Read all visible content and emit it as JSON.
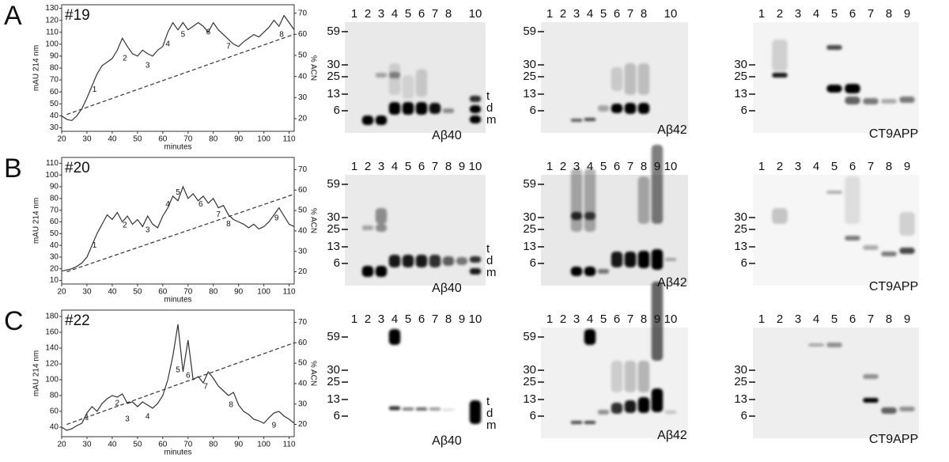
{
  "panels": [
    {
      "letter": "A",
      "sample": "#19",
      "chromatogram": {
        "type": "line",
        "xlabel": "minutes",
        "ylabel": "mAU 214 nm",
        "y2label": "% ACN",
        "xlim": [
          20,
          112
        ],
        "xticks": [
          20,
          30,
          40,
          50,
          60,
          70,
          80,
          90,
          100,
          110
        ],
        "ylim": [
          27,
          133
        ],
        "yticks": [
          30,
          40,
          50,
          60,
          70,
          80,
          90,
          100,
          110,
          120,
          130
        ],
        "y2lim": [
          14,
          74
        ],
        "y2ticks": [
          20,
          30,
          40,
          50,
          60,
          70
        ],
        "color": "#333333",
        "x": [
          20,
          22,
          24,
          26,
          28,
          30,
          32,
          34,
          36,
          38,
          40,
          42,
          44,
          46,
          48,
          50,
          52,
          54,
          56,
          58,
          60,
          62,
          64,
          66,
          68,
          70,
          72,
          74,
          76,
          78,
          80,
          82,
          84,
          86,
          88,
          90,
          92,
          94,
          96,
          98,
          100,
          102,
          104,
          106,
          108,
          110,
          112
        ],
        "values": [
          40,
          37,
          36,
          40,
          46,
          55,
          65,
          75,
          82,
          85,
          88,
          95,
          105,
          98,
          92,
          90,
          95,
          92,
          90,
          95,
          98,
          110,
          118,
          112,
          118,
          112,
          115,
          118,
          115,
          110,
          118,
          112,
          108,
          104,
          100,
          98,
          102,
          105,
          108,
          106,
          110,
          114,
          120,
          115,
          124,
          118,
          112
        ],
        "gradient": {
          "axis": "y2",
          "x": [
            22,
            112
          ],
          "values": [
            22,
            60
          ]
        },
        "fractions": [
          {
            "label": "1",
            "x": 33,
            "y": 62
          },
          {
            "label": "2",
            "x": 45,
            "y": 88
          },
          {
            "label": "3",
            "x": 54,
            "y": 82
          },
          {
            "label": "4",
            "x": 62,
            "y": 100
          },
          {
            "label": "5",
            "x": 68,
            "y": 108
          },
          {
            "label": "6",
            "x": 78,
            "y": 110
          },
          {
            "label": "7",
            "x": 86,
            "y": 98
          },
          {
            "label": "8",
            "x": 107,
            "y": 108
          }
        ]
      },
      "blots": [
        {
          "lanes": [
            1,
            2,
            3,
            4,
            5,
            6,
            7,
            8,
            10
          ],
          "markers": [
            59,
            30,
            25,
            13,
            6
          ],
          "caption": "Aβ40",
          "band_labels": [
            "t",
            "d",
            "m"
          ]
        },
        {
          "lanes": [
            1,
            2,
            3,
            4,
            5,
            6,
            7,
            8,
            10
          ],
          "markers": [
            59,
            30,
            25,
            13,
            6
          ],
          "caption": "Aβ42"
        },
        {
          "lanes": [
            1,
            2,
            3,
            4,
            5,
            6,
            7,
            8,
            9
          ],
          "markers": [
            30,
            25,
            13,
            6
          ],
          "caption": "CT9APP"
        }
      ]
    },
    {
      "letter": "B",
      "sample": "#20",
      "chromatogram": {
        "type": "line",
        "xlabel": "minutes",
        "ylabel": "mAU 214 nm",
        "y2label": "% ACN",
        "xlim": [
          20,
          112
        ],
        "xticks": [
          20,
          30,
          40,
          50,
          60,
          70,
          80,
          90,
          100,
          110
        ],
        "ylim": [
          7,
          115
        ],
        "yticks": [
          10,
          20,
          30,
          40,
          50,
          60,
          70,
          80,
          90,
          100,
          110
        ],
        "y2lim": [
          14,
          76
        ],
        "y2ticks": [
          20,
          30,
          40,
          50,
          60,
          70
        ],
        "color": "#333333",
        "x": [
          20,
          24,
          26,
          28,
          30,
          32,
          34,
          36,
          38,
          40,
          42,
          44,
          46,
          48,
          50,
          52,
          54,
          56,
          58,
          60,
          62,
          64,
          66,
          68,
          70,
          72,
          74,
          76,
          78,
          80,
          82,
          84,
          86,
          88,
          90,
          92,
          94,
          96,
          98,
          100,
          102,
          104,
          106,
          108,
          110,
          112
        ],
        "values": [
          18,
          20,
          22,
          25,
          30,
          40,
          50,
          58,
          66,
          62,
          68,
          60,
          65,
          58,
          62,
          56,
          65,
          58,
          55,
          65,
          72,
          82,
          78,
          90,
          80,
          84,
          78,
          82,
          76,
          80,
          72,
          74,
          66,
          62,
          60,
          58,
          55,
          58,
          54,
          56,
          60,
          66,
          72,
          65,
          58,
          56
        ],
        "gradient": {
          "axis": "y2",
          "x": [
            22,
            112
          ],
          "values": [
            20,
            58
          ]
        },
        "fractions": [
          {
            "label": "1",
            "x": 33,
            "y": 40
          },
          {
            "label": "2",
            "x": 45,
            "y": 57
          },
          {
            "label": "3",
            "x": 54,
            "y": 53
          },
          {
            "label": "4",
            "x": 62,
            "y": 75
          },
          {
            "label": "5",
            "x": 66,
            "y": 85
          },
          {
            "label": "6",
            "x": 75,
            "y": 75
          },
          {
            "label": "7",
            "x": 82,
            "y": 66
          },
          {
            "label": "8",
            "x": 86,
            "y": 58
          },
          {
            "label": "9",
            "x": 105,
            "y": 63
          }
        ]
      },
      "blots": [
        {
          "lanes": [
            1,
            2,
            3,
            4,
            5,
            6,
            7,
            8,
            9,
            10
          ],
          "markers": [
            59,
            30,
            25,
            13,
            6
          ],
          "caption": "Aβ40",
          "band_labels": [
            "t",
            "d",
            "m"
          ]
        },
        {
          "lanes": [
            1,
            2,
            3,
            4,
            5,
            6,
            7,
            8,
            9,
            10
          ],
          "markers": [
            59,
            30,
            25,
            13,
            6
          ],
          "caption": "Aβ42"
        },
        {
          "lanes": [
            1,
            2,
            3,
            4,
            5,
            6,
            7,
            8,
            9
          ],
          "markers": [
            30,
            25,
            13,
            6
          ],
          "caption": "CT9APP"
        }
      ]
    },
    {
      "letter": "C",
      "sample": "#22",
      "chromatogram": {
        "type": "line",
        "xlabel": "minutes",
        "ylabel": "mAU 214 nm",
        "y2label": "% ACN",
        "xlim": [
          20,
          112
        ],
        "xticks": [
          20,
          30,
          40,
          50,
          60,
          70,
          80,
          90,
          100,
          110
        ],
        "ylim": [
          28,
          188
        ],
        "yticks": [
          40,
          60,
          80,
          100,
          120,
          140,
          160,
          180
        ],
        "y2lim": [
          14,
          76
        ],
        "y2ticks": [
          20,
          30,
          40,
          50,
          60,
          70
        ],
        "color": "#333333",
        "x": [
          20,
          22,
          24,
          26,
          28,
          30,
          32,
          34,
          36,
          38,
          40,
          42,
          44,
          46,
          48,
          50,
          52,
          54,
          56,
          58,
          60,
          62,
          64,
          66,
          68,
          70,
          72,
          74,
          76,
          78,
          80,
          82,
          84,
          86,
          88,
          90,
          92,
          94,
          96,
          98,
          100,
          102,
          104,
          106,
          108,
          110,
          112
        ],
        "values": [
          40,
          36,
          38,
          42,
          45,
          58,
          66,
          60,
          70,
          76,
          80,
          78,
          82,
          70,
          72,
          66,
          72,
          68,
          64,
          70,
          80,
          100,
          130,
          170,
          110,
          150,
          100,
          104,
          96,
          110,
          102,
          92,
          86,
          80,
          84,
          68,
          60,
          56,
          50,
          48,
          45,
          52,
          58,
          60,
          54,
          50,
          45
        ],
        "gradient": {
          "axis": "y2",
          "x": [
            22,
            112
          ],
          "values": [
            20,
            60
          ]
        },
        "fractions": [
          {
            "label": "1",
            "x": 30,
            "y": 52
          },
          {
            "label": "2",
            "x": 42,
            "y": 70
          },
          {
            "label": "3",
            "x": 46,
            "y": 50
          },
          {
            "label": "4",
            "x": 54,
            "y": 53
          },
          {
            "label": "5",
            "x": 66,
            "y": 112
          },
          {
            "label": "6",
            "x": 70,
            "y": 105
          },
          {
            "label": "7",
            "x": 77,
            "y": 91
          },
          {
            "label": "8",
            "x": 87,
            "y": 68
          },
          {
            "label": "9",
            "x": 104,
            "y": 42
          }
        ]
      },
      "blots": [
        {
          "lanes": [
            1,
            2,
            3,
            4,
            5,
            6,
            7,
            8,
            9,
            10
          ],
          "markers": [
            59,
            30,
            25,
            13,
            6
          ],
          "caption": "Aβ40",
          "band_labels": [
            "t",
            "d",
            "m"
          ]
        },
        {
          "lanes": [
            1,
            2,
            3,
            4,
            5,
            6,
            7,
            8,
            9,
            10
          ],
          "markers": [
            59,
            30,
            25,
            13,
            6
          ],
          "caption": "Aβ42"
        },
        {
          "lanes": [
            1,
            2,
            3,
            4,
            5,
            6,
            7,
            8,
            9
          ],
          "markers": [
            30,
            25,
            13,
            6
          ],
          "caption": "CT9APP"
        }
      ]
    }
  ]
}
